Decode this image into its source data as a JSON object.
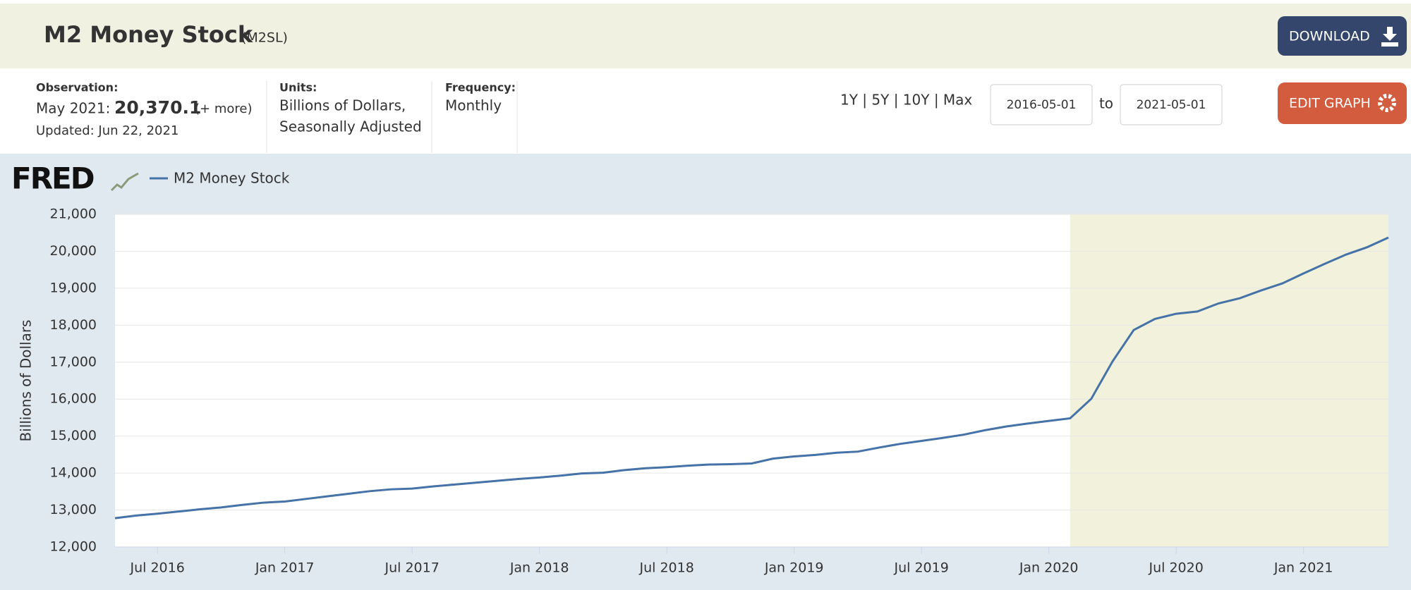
{
  "header": {
    "title": "M2 Money Stock",
    "series_id": "(M2SL)",
    "download": "DOWNLOAD"
  },
  "info": {
    "observation_label": "Observation:",
    "observation_date": "May 2021:",
    "observation_value": "20,370.1",
    "observation_more": "(+ more)",
    "updated": "Updated: Jun 22, 2021",
    "units_label": "Units:",
    "units_line1": "Billions of Dollars,",
    "units_line2": "Seasonally Adjusted",
    "frequency_label": "Frequency:",
    "frequency": "Monthly"
  },
  "controls": {
    "ranges": "1Y | 5Y | 10Y | Max",
    "start_date": "2016-05-01",
    "to": "to",
    "end_date": "2021-05-01",
    "edit": "EDIT GRAPH"
  },
  "chart_data": {
    "type": "line",
    "logo": "FRED",
    "y_label": "Billions of Dollars",
    "x": [
      "2016-05",
      "2016-06",
      "2016-07",
      "2016-08",
      "2016-09",
      "2016-10",
      "2016-11",
      "2016-12",
      "2017-01",
      "2017-02",
      "2017-03",
      "2017-04",
      "2017-05",
      "2017-06",
      "2017-07",
      "2017-08",
      "2017-09",
      "2017-10",
      "2017-11",
      "2017-12",
      "2018-01",
      "2018-02",
      "2018-03",
      "2018-04",
      "2018-05",
      "2018-06",
      "2018-07",
      "2018-08",
      "2018-09",
      "2018-10",
      "2018-11",
      "2018-12",
      "2019-01",
      "2019-02",
      "2019-03",
      "2019-04",
      "2019-05",
      "2019-06",
      "2019-07",
      "2019-08",
      "2019-09",
      "2019-10",
      "2019-11",
      "2019-12",
      "2020-01",
      "2020-02",
      "2020-03",
      "2020-04",
      "2020-05",
      "2020-06",
      "2020-07",
      "2020-08",
      "2020-09",
      "2020-10",
      "2020-11",
      "2020-12",
      "2021-01",
      "2021-02",
      "2021-03",
      "2021-04",
      "2021-05"
    ],
    "series": [
      {
        "name": "M2 Money Stock",
        "color": "#4572a7",
        "values": [
          12780,
          12850,
          12900,
          12960,
          13020,
          13070,
          13140,
          13200,
          13230,
          13300,
          13370,
          13440,
          13510,
          13560,
          13580,
          13640,
          13690,
          13740,
          13790,
          13840,
          13880,
          13930,
          13990,
          14010,
          14080,
          14130,
          14160,
          14200,
          14230,
          14240,
          14260,
          14390,
          14450,
          14490,
          14550,
          14580,
          14690,
          14790,
          14870,
          14950,
          15040,
          15160,
          15260,
          15340,
          15410,
          15480,
          16010,
          17020,
          17870,
          18170,
          18310,
          18370,
          18590,
          18730,
          18940,
          19130,
          19400,
          19660,
          19910,
          20110,
          20370.1
        ]
      }
    ],
    "xlim": [
      "2016-05",
      "2021-05"
    ],
    "xticks": [
      {
        "value": "2016-07",
        "label": "Jul 2016"
      },
      {
        "value": "2017-01",
        "label": "Jan 2017"
      },
      {
        "value": "2017-07",
        "label": "Jul 2017"
      },
      {
        "value": "2018-01",
        "label": "Jan 2018"
      },
      {
        "value": "2018-07",
        "label": "Jul 2018"
      },
      {
        "value": "2019-01",
        "label": "Jan 2019"
      },
      {
        "value": "2019-07",
        "label": "Jul 2019"
      },
      {
        "value": "2020-01",
        "label": "Jan 2020"
      },
      {
        "value": "2020-07",
        "label": "Jul 2020"
      },
      {
        "value": "2021-01",
        "label": "Jan 2021"
      }
    ],
    "ylim": [
      12000,
      21000
    ],
    "yticks": [
      {
        "value": 12000,
        "label": "12,000"
      },
      {
        "value": 13000,
        "label": "13,000"
      },
      {
        "value": 14000,
        "label": "14,000"
      },
      {
        "value": 15000,
        "label": "15,000"
      },
      {
        "value": 16000,
        "label": "16,000"
      },
      {
        "value": 17000,
        "label": "17,000"
      },
      {
        "value": 18000,
        "label": "18,000"
      },
      {
        "value": 19000,
        "label": "19,000"
      },
      {
        "value": 20000,
        "label": "20,000"
      },
      {
        "value": 21000,
        "label": "21,000"
      }
    ],
    "grid": true,
    "shading": [
      {
        "start": "2020-02",
        "end": "2021-05",
        "color": "#f1f1dc"
      }
    ]
  }
}
